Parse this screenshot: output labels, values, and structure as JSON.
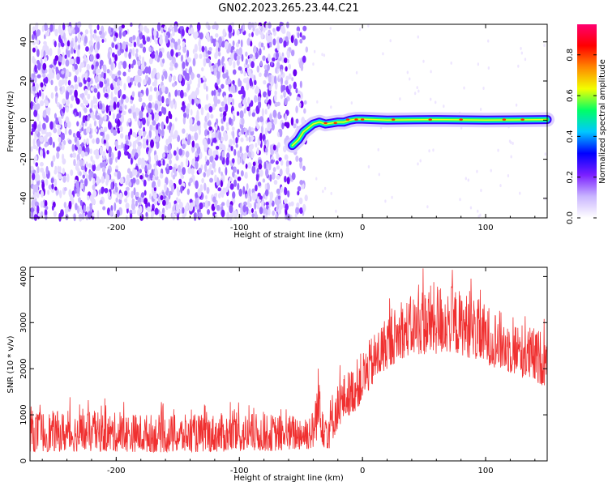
{
  "title": "GN02.2023.265.23.44.C21",
  "chart_data": [
    {
      "type": "heatmap",
      "xlabel": "Height of straight line (km)",
      "ylabel": "Frequency (Hz)",
      "xlim": [
        -270,
        150
      ],
      "ylim": [
        -50,
        49
      ],
      "xticks": [
        -200,
        -100,
        0,
        100
      ],
      "yticks": [
        -40,
        -20,
        0,
        20,
        40
      ],
      "colorbar": {
        "label": "Normalized spectral amplitude",
        "range": [
          0,
          0.95
        ],
        "ticks": [
          0.0,
          0.2,
          0.4,
          0.6,
          0.8
        ],
        "colormap": "rainbow",
        "colors": [
          "#ffffff",
          "#c9b5ff",
          "#7a1fff",
          "#0000ff",
          "#00c8ff",
          "#00ff66",
          "#f2ff00",
          "#ff8800",
          "#ff0000",
          "#ff0070"
        ]
      },
      "noise_region_x": [
        -270,
        -45
      ],
      "signal_track": {
        "x": [
          -57,
          -52,
          -48,
          -44,
          -40,
          -35,
          -30,
          -25,
          -20,
          -15,
          -10,
          -5,
          0,
          20,
          60,
          100,
          150
        ],
        "y": [
          -13,
          -10,
          -6,
          -4,
          -2,
          -1,
          -2,
          -1.5,
          -1,
          -1,
          0,
          0.5,
          0.5,
          0,
          0.3,
          0,
          0.3
        ]
      },
      "grid": false
    },
    {
      "type": "line",
      "xlabel": "Height of straight line (km)",
      "ylabel": "SNR (10 * v/v)",
      "xlim": [
        -270,
        150
      ],
      "ylim": [
        0,
        4200
      ],
      "xticks": [
        -200,
        -100,
        0,
        100
      ],
      "yticks": [
        0,
        1000,
        2000,
        3000,
        4000
      ],
      "color": "#f03030",
      "envelope": {
        "x": [
          -270,
          -200,
          -150,
          -100,
          -60,
          -40,
          -35,
          -32,
          -28,
          -25,
          -20,
          -15,
          -10,
          -5,
          0,
          10,
          20,
          30,
          40,
          50,
          60,
          70,
          80,
          90,
          100,
          110,
          120,
          130,
          140,
          150
        ],
        "low": [
          200,
          200,
          180,
          200,
          220,
          250,
          600,
          300,
          200,
          400,
          700,
          900,
          1000,
          1100,
          1300,
          1700,
          2000,
          2200,
          2300,
          2300,
          2300,
          2350,
          2300,
          2200,
          2100,
          2000,
          1900,
          1800,
          1700,
          1600
        ],
        "high": [
          1100,
          1050,
          1000,
          1050,
          1000,
          1100,
          2300,
          1600,
          1200,
          1500,
          1700,
          1900,
          2000,
          2200,
          2400,
          2800,
          3200,
          3400,
          3600,
          3800,
          3900,
          3850,
          3700,
          3600,
          3400,
          3300,
          3100,
          3000,
          2900,
          2800
        ]
      },
      "grid": false
    }
  ]
}
